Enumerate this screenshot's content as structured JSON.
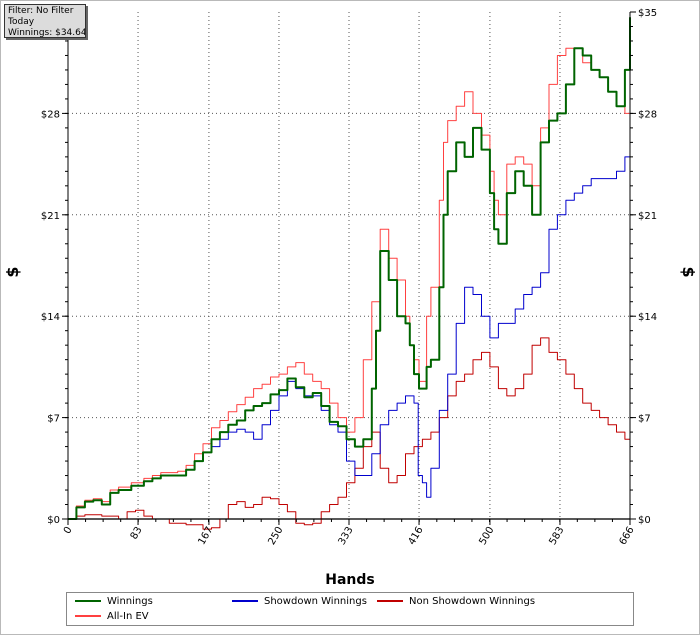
{
  "info_box": {
    "lines": [
      "Filter: No Filter",
      "Today",
      "Winnings: $34.64"
    ]
  },
  "chart_data": {
    "type": "line",
    "xlabel": "Hands",
    "ylabel": "$",
    "ylabel_right": "$",
    "xlim": [
      0,
      666
    ],
    "ylim": [
      0,
      35
    ],
    "x_ticks": [
      0,
      83,
      167,
      250,
      333,
      416,
      500,
      583,
      666
    ],
    "y_ticks": [
      0,
      7,
      14,
      21,
      28,
      35
    ],
    "y_tick_labels": [
      "$0",
      "$7",
      "$14",
      "$21",
      "$28",
      "$35"
    ],
    "grid": true,
    "legend_position": "bottom",
    "series": [
      {
        "name": "Winnings",
        "color": "#006400",
        "points": [
          [
            0,
            0
          ],
          [
            10,
            0.8
          ],
          [
            20,
            1.2
          ],
          [
            30,
            1.3
          ],
          [
            40,
            1.0
          ],
          [
            50,
            1.8
          ],
          [
            60,
            2.0
          ],
          [
            75,
            2.3
          ],
          [
            90,
            2.6
          ],
          [
            100,
            2.8
          ],
          [
            110,
            3.0
          ],
          [
            130,
            3.0
          ],
          [
            140,
            3.4
          ],
          [
            150,
            4.0
          ],
          [
            160,
            4.6
          ],
          [
            170,
            5.5
          ],
          [
            180,
            6.0
          ],
          [
            190,
            6.5
          ],
          [
            200,
            6.8
          ],
          [
            210,
            7.5
          ],
          [
            220,
            7.8
          ],
          [
            230,
            8.0
          ],
          [
            240,
            8.6
          ],
          [
            250,
            8.9
          ],
          [
            260,
            9.7
          ],
          [
            270,
            9.1
          ],
          [
            280,
            8.4
          ],
          [
            290,
            8.7
          ],
          [
            300,
            7.8
          ],
          [
            310,
            6.7
          ],
          [
            320,
            6.4
          ],
          [
            330,
            5.5
          ],
          [
            340,
            5.0
          ],
          [
            350,
            5.5
          ],
          [
            360,
            9.0
          ],
          [
            365,
            13.0
          ],
          [
            370,
            18.5
          ],
          [
            380,
            16.5
          ],
          [
            390,
            14.0
          ],
          [
            400,
            13.5
          ],
          [
            405,
            12.0
          ],
          [
            410,
            10.0
          ],
          [
            416,
            9.0
          ],
          [
            425,
            10.5
          ],
          [
            430,
            11.0
          ],
          [
            440,
            16.0
          ],
          [
            445,
            21.0
          ],
          [
            450,
            24.0
          ],
          [
            460,
            26.0
          ],
          [
            470,
            25.0
          ],
          [
            480,
            27.0
          ],
          [
            490,
            25.5
          ],
          [
            500,
            22.5
          ],
          [
            505,
            20.0
          ],
          [
            510,
            19.0
          ],
          [
            520,
            22.5
          ],
          [
            530,
            24.0
          ],
          [
            540,
            23.0
          ],
          [
            550,
            21.0
          ],
          [
            560,
            26.0
          ],
          [
            570,
            27.5
          ],
          [
            580,
            28.0
          ],
          [
            590,
            30.0
          ],
          [
            600,
            32.5
          ],
          [
            610,
            32.0
          ],
          [
            620,
            31.0
          ],
          [
            630,
            30.5
          ],
          [
            640,
            29.5
          ],
          [
            650,
            28.5
          ],
          [
            655,
            28.5
          ],
          [
            660,
            31.0
          ],
          [
            666,
            34.64
          ]
        ]
      },
      {
        "name": "Showdown Winnings",
        "color": "#0000cd",
        "points": [
          [
            0,
            0
          ],
          [
            10,
            0.8
          ],
          [
            20,
            1.2
          ],
          [
            30,
            1.3
          ],
          [
            40,
            1.0
          ],
          [
            50,
            1.8
          ],
          [
            60,
            2.0
          ],
          [
            75,
            2.3
          ],
          [
            90,
            2.6
          ],
          [
            100,
            2.8
          ],
          [
            110,
            3.0
          ],
          [
            130,
            3.0
          ],
          [
            140,
            3.4
          ],
          [
            150,
            4.0
          ],
          [
            160,
            4.6
          ],
          [
            170,
            5.0
          ],
          [
            180,
            5.5
          ],
          [
            190,
            6.0
          ],
          [
            200,
            6.2
          ],
          [
            210,
            6.0
          ],
          [
            220,
            5.5
          ],
          [
            230,
            6.5
          ],
          [
            240,
            7.5
          ],
          [
            250,
            8.5
          ],
          [
            260,
            9.5
          ],
          [
            270,
            9.0
          ],
          [
            280,
            8.5
          ],
          [
            290,
            8.5
          ],
          [
            300,
            7.5
          ],
          [
            310,
            6.5
          ],
          [
            320,
            6.0
          ],
          [
            330,
            4.0
          ],
          [
            340,
            3.0
          ],
          [
            350,
            3.0
          ],
          [
            360,
            4.5
          ],
          [
            370,
            6.5
          ],
          [
            380,
            7.5
          ],
          [
            390,
            8.0
          ],
          [
            400,
            8.5
          ],
          [
            410,
            8.0
          ],
          [
            415,
            3.0
          ],
          [
            420,
            2.5
          ],
          [
            425,
            1.5
          ],
          [
            430,
            3.5
          ],
          [
            440,
            7.5
          ],
          [
            450,
            10.0
          ],
          [
            460,
            13.5
          ],
          [
            470,
            16.0
          ],
          [
            480,
            15.5
          ],
          [
            490,
            14.0
          ],
          [
            500,
            12.5
          ],
          [
            510,
            13.5
          ],
          [
            520,
            13.5
          ],
          [
            530,
            14.5
          ],
          [
            540,
            15.5
          ],
          [
            550,
            16.0
          ],
          [
            560,
            17.0
          ],
          [
            570,
            20.0
          ],
          [
            580,
            21.0
          ],
          [
            590,
            22.0
          ],
          [
            600,
            22.5
          ],
          [
            610,
            23.0
          ],
          [
            620,
            23.5
          ],
          [
            630,
            23.5
          ],
          [
            640,
            23.5
          ],
          [
            650,
            24.0
          ],
          [
            660,
            25.0
          ],
          [
            666,
            26.0
          ]
        ]
      },
      {
        "name": "Non Showdown Winnings",
        "color": "#c00000",
        "points": [
          [
            0,
            0
          ],
          [
            10,
            0.2
          ],
          [
            20,
            0.3
          ],
          [
            40,
            0.2
          ],
          [
            60,
            0.0
          ],
          [
            70,
            0.5
          ],
          [
            80,
            0.6
          ],
          [
            90,
            0.2
          ],
          [
            100,
            0.0
          ],
          [
            120,
            -0.3
          ],
          [
            140,
            -0.4
          ],
          [
            160,
            -0.7
          ],
          [
            170,
            -0.6
          ],
          [
            180,
            0.0
          ],
          [
            190,
            1.0
          ],
          [
            200,
            1.2
          ],
          [
            210,
            0.8
          ],
          [
            220,
            1.0
          ],
          [
            230,
            1.5
          ],
          [
            240,
            1.4
          ],
          [
            250,
            1.0
          ],
          [
            260,
            0.5
          ],
          [
            270,
            -0.3
          ],
          [
            280,
            -0.4
          ],
          [
            290,
            -0.3
          ],
          [
            300,
            0.5
          ],
          [
            310,
            1.0
          ],
          [
            320,
            1.5
          ],
          [
            330,
            2.5
          ],
          [
            340,
            3.5
          ],
          [
            350,
            5.0
          ],
          [
            360,
            6.0
          ],
          [
            370,
            3.5
          ],
          [
            380,
            2.5
          ],
          [
            390,
            3.0
          ],
          [
            400,
            4.5
          ],
          [
            410,
            5.0
          ],
          [
            420,
            5.5
          ],
          [
            430,
            6.0
          ],
          [
            440,
            7.0
          ],
          [
            450,
            8.5
          ],
          [
            460,
            9.5
          ],
          [
            470,
            10.0
          ],
          [
            480,
            11.0
          ],
          [
            490,
            11.5
          ],
          [
            500,
            10.5
          ],
          [
            510,
            9.0
          ],
          [
            520,
            8.5
          ],
          [
            530,
            9.0
          ],
          [
            540,
            10.0
          ],
          [
            550,
            12.0
          ],
          [
            560,
            12.5
          ],
          [
            570,
            11.5
          ],
          [
            580,
            11.0
          ],
          [
            590,
            10.0
          ],
          [
            600,
            9.0
          ],
          [
            610,
            8.0
          ],
          [
            620,
            7.5
          ],
          [
            630,
            7.0
          ],
          [
            640,
            6.5
          ],
          [
            650,
            6.0
          ],
          [
            660,
            5.5
          ],
          [
            666,
            5.5
          ]
        ]
      },
      {
        "name": "All-In EV",
        "color": "#ff4040",
        "points": [
          [
            0,
            0
          ],
          [
            10,
            0.9
          ],
          [
            20,
            1.3
          ],
          [
            30,
            1.4
          ],
          [
            40,
            1.2
          ],
          [
            50,
            2.0
          ],
          [
            60,
            2.2
          ],
          [
            75,
            2.5
          ],
          [
            90,
            2.8
          ],
          [
            100,
            3.0
          ],
          [
            110,
            3.2
          ],
          [
            130,
            3.3
          ],
          [
            140,
            3.7
          ],
          [
            150,
            4.5
          ],
          [
            160,
            5.2
          ],
          [
            170,
            6.3
          ],
          [
            180,
            6.8
          ],
          [
            190,
            7.4
          ],
          [
            200,
            7.9
          ],
          [
            210,
            8.4
          ],
          [
            220,
            9.0
          ],
          [
            230,
            9.3
          ],
          [
            240,
            9.8
          ],
          [
            250,
            10.0
          ],
          [
            260,
            10.5
          ],
          [
            270,
            10.8
          ],
          [
            280,
            10.0
          ],
          [
            290,
            9.5
          ],
          [
            300,
            9.0
          ],
          [
            310,
            8.0
          ],
          [
            320,
            7.0
          ],
          [
            330,
            6.0
          ],
          [
            340,
            7.0
          ],
          [
            350,
            11.0
          ],
          [
            360,
            15.0
          ],
          [
            370,
            20.0
          ],
          [
            380,
            18.0
          ],
          [
            390,
            16.5
          ],
          [
            400,
            14.0
          ],
          [
            405,
            12.0
          ],
          [
            410,
            11.0
          ],
          [
            416,
            9.5
          ],
          [
            425,
            14.0
          ],
          [
            430,
            16.0
          ],
          [
            440,
            22.0
          ],
          [
            445,
            26.0
          ],
          [
            450,
            27.5
          ],
          [
            460,
            28.5
          ],
          [
            470,
            29.5
          ],
          [
            480,
            28.0
          ],
          [
            490,
            26.5
          ],
          [
            500,
            24.0
          ],
          [
            505,
            22.0
          ],
          [
            510,
            21.0
          ],
          [
            520,
            24.5
          ],
          [
            530,
            25.0
          ],
          [
            540,
            24.5
          ],
          [
            550,
            23.0
          ],
          [
            560,
            27.0
          ],
          [
            570,
            30.0
          ],
          [
            580,
            32.0
          ],
          [
            590,
            32.5
          ],
          [
            600,
            32.5
          ],
          [
            610,
            31.5
          ],
          [
            620,
            31.0
          ],
          [
            630,
            30.5
          ],
          [
            640,
            29.5
          ],
          [
            650,
            28.5
          ],
          [
            660,
            28.0
          ],
          [
            666,
            29.5
          ]
        ]
      }
    ]
  },
  "legend": {
    "items": [
      {
        "label": "Winnings",
        "color": "#006400"
      },
      {
        "label": "Showdown Winnings",
        "color": "#0000cd"
      },
      {
        "label": "Non Showdown Winnings",
        "color": "#c00000"
      },
      {
        "label": "All-In EV",
        "color": "#ff4040"
      }
    ]
  }
}
